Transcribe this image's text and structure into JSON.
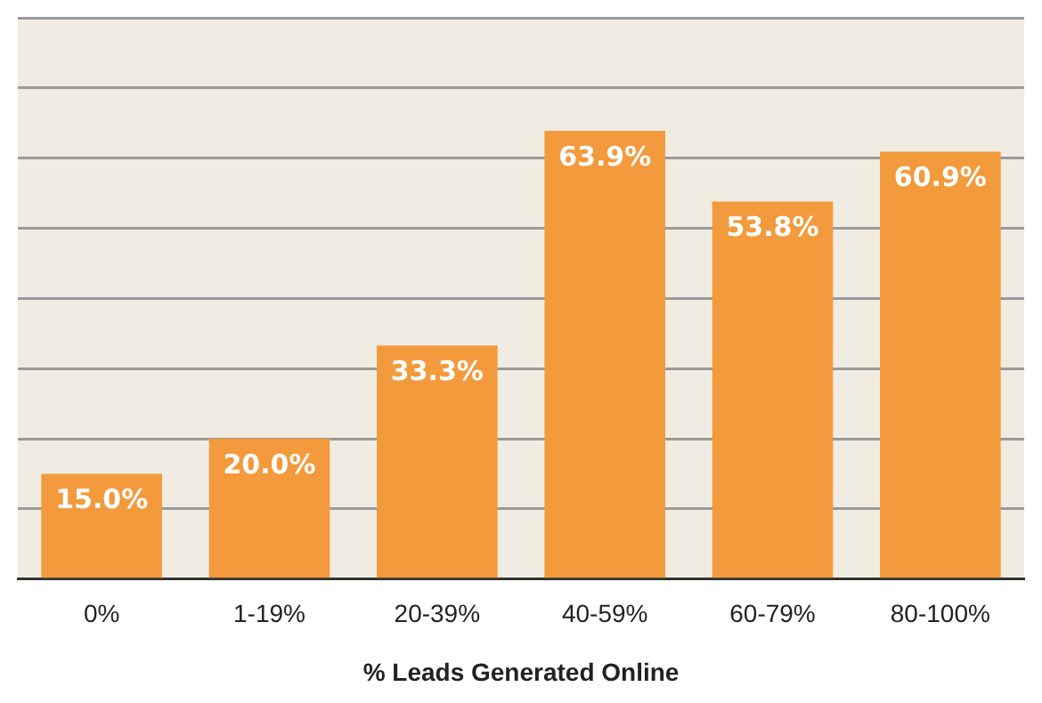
{
  "chart_data": {
    "type": "bar",
    "xlabel": "% Leads Generated Online",
    "categories": [
      "0%",
      "1-19%",
      "20-39%",
      "40-59%",
      "60-79%",
      "80-100%"
    ],
    "values": [
      15.0,
      20.0,
      33.3,
      63.9,
      53.8,
      60.9
    ],
    "value_labels": [
      "15.0%",
      "20.0%",
      "33.3%",
      "63.9%",
      "53.8%",
      "60.9%"
    ],
    "color": "#f39a3c",
    "grid": "y",
    "tick_labels": "x",
    "legend": false
  }
}
